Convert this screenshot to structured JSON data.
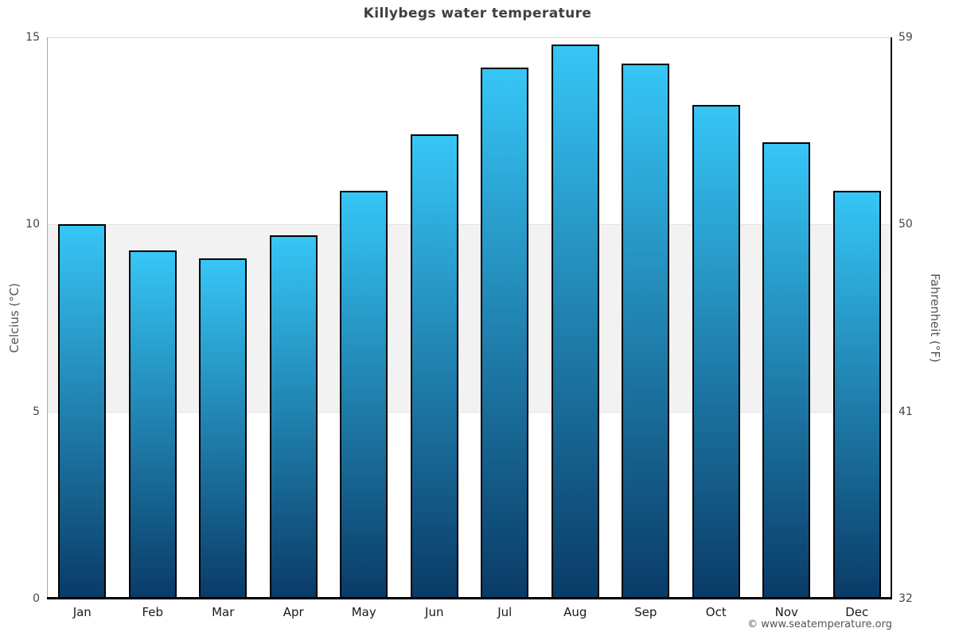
{
  "title": "Killybegs water temperature",
  "watermark": "© www.seatemperature.org",
  "axes": {
    "left_label": "Celcius (°C)",
    "right_label": "Fahrenheit (°F)"
  },
  "colors": {
    "bar_top": "#36c6f6",
    "bar_bottom": "#0a3b67",
    "bar_border": "#000000",
    "band_gray": "#f2f2f2",
    "gridline_top": "#d9d9d9",
    "gridline_band_edge": "#e3e3e3"
  },
  "chart_data": {
    "type": "bar",
    "title": "Killybegs water temperature",
    "categories": [
      "Jan",
      "Feb",
      "Mar",
      "Apr",
      "May",
      "Jun",
      "Jul",
      "Aug",
      "Sep",
      "Oct",
      "Nov",
      "Dec"
    ],
    "values": [
      10.0,
      9.3,
      9.1,
      9.7,
      10.9,
      12.4,
      14.2,
      14.8,
      14.3,
      13.2,
      12.2,
      10.9
    ],
    "unit": "°C",
    "ylabel_left": "Celcius (°C)",
    "ylabel_right": "Fahrenheit (°F)",
    "ylim_celsius": [
      0,
      15
    ],
    "yticks_celsius": [
      15,
      10,
      5,
      0
    ],
    "yticks_fahrenheit": [
      59,
      50,
      41,
      32
    ],
    "grid": "alternating-horizontal-bands",
    "legend": "none"
  }
}
